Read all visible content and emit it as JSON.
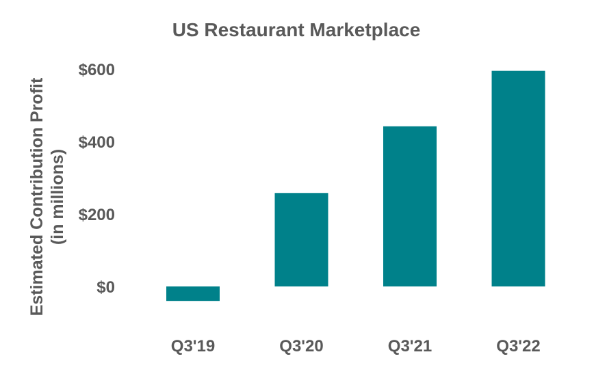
{
  "chart_data": {
    "type": "bar",
    "title": "US Restaurant Marketplace",
    "ylabel_line1": "Estimated Contribution Profit",
    "ylabel_line2": "(in millions)",
    "xlabel": "",
    "categories": [
      "Q3'19",
      "Q3'20",
      "Q3'21",
      "Q3'22"
    ],
    "values": [
      -40,
      258,
      442,
      595
    ],
    "ylim": [
      -100,
      600
    ],
    "yticks": [
      {
        "value": 0,
        "label": "$0"
      },
      {
        "value": 200,
        "label": "$200"
      },
      {
        "value": 400,
        "label": "$400"
      },
      {
        "value": 600,
        "label": "$600"
      }
    ],
    "grid": false,
    "legend": "none",
    "bar_color": "#00818A",
    "text_color": "#595959"
  }
}
